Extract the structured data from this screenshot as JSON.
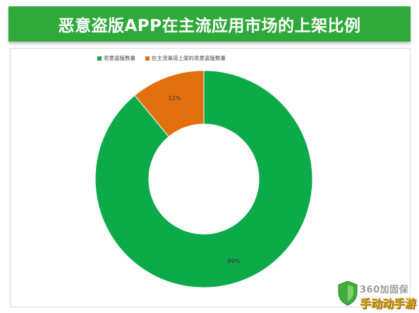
{
  "header": {
    "title": "恶意盗版APP在主流应用市场的上架比例"
  },
  "chart_data": {
    "type": "pie",
    "donut": true,
    "title": "",
    "legend_position": "top-left",
    "series": [
      {
        "name": "恶意盗版数量",
        "value": 89,
        "label": "89%",
        "color": "#0daa4a"
      },
      {
        "name": "在主流渠道上架的恶意盗版数量",
        "value": 11,
        "label": "11%",
        "color": "#e3700f"
      }
    ]
  },
  "watermark": {
    "top": "360加固保",
    "bottom": "手动动手游",
    "icon": "shield-icon"
  }
}
